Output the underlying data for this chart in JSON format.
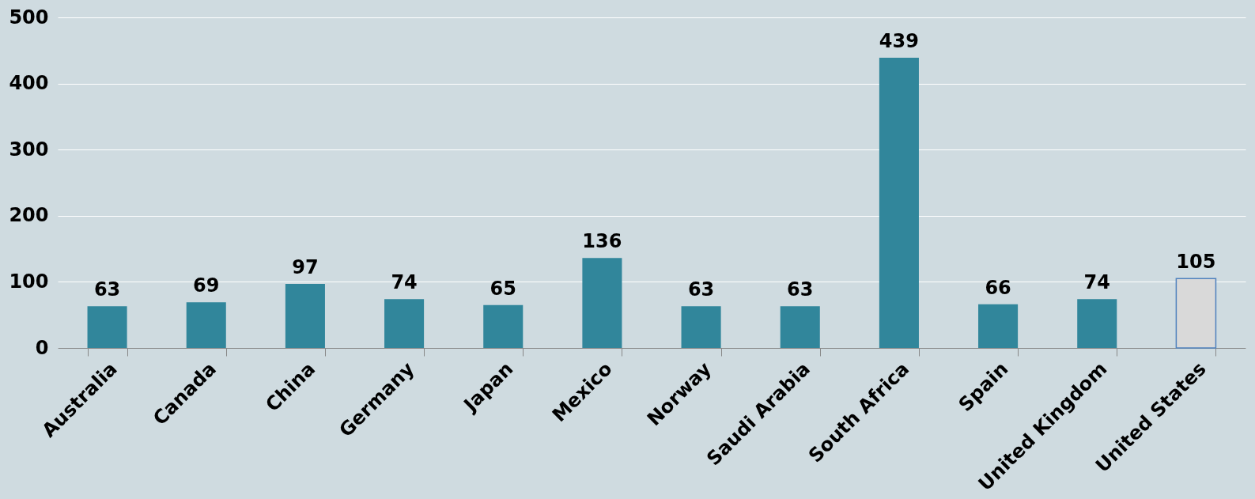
{
  "chart_data": {
    "type": "bar",
    "categories": [
      "Australia",
      "Canada",
      "China",
      "Germany",
      "Japan",
      "Mexico",
      "Norway",
      "Saudi Arabia",
      "South Africa",
      "Spain",
      "United Kingdom",
      "United States"
    ],
    "values": [
      63,
      69,
      97,
      74,
      65,
      136,
      63,
      63,
      439,
      66,
      74,
      105
    ],
    "colors": [
      "#31869b",
      "#31869b",
      "#31869b",
      "#31869b",
      "#31869b",
      "#31869b",
      "#31869b",
      "#31869b",
      "#31869b",
      "#31869b",
      "#31869b",
      "#d9d9d9"
    ],
    "ylim": [
      0,
      500
    ],
    "yticks": [
      0,
      100,
      200,
      300,
      400,
      500
    ],
    "grid": "y",
    "data_labels": true
  }
}
